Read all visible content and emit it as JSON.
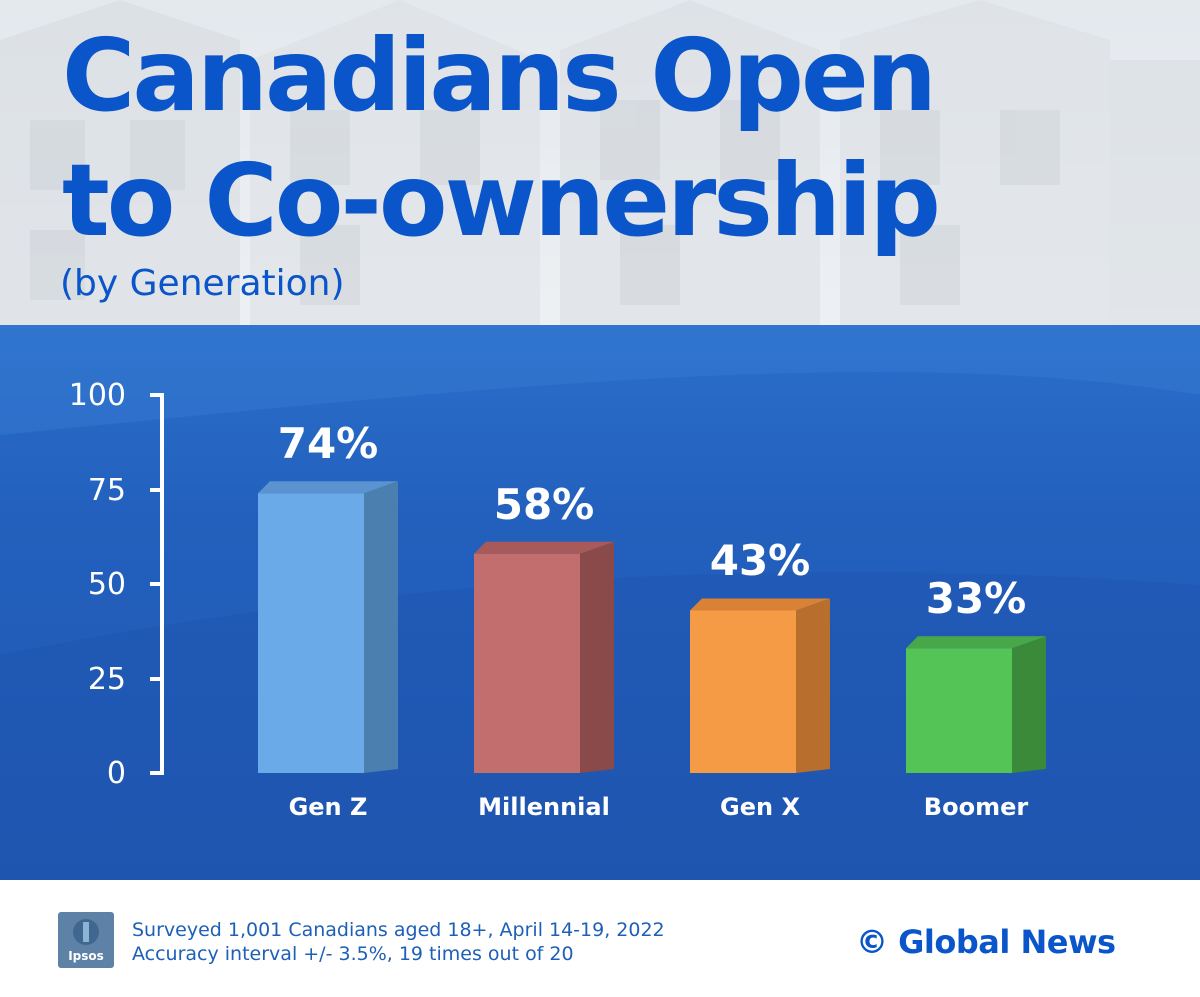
{
  "header": {
    "title_line1": "Canadians Open",
    "title_line2": "to Co-ownership",
    "subtitle": "(by Generation)"
  },
  "colors": {
    "title": "#0a55c9",
    "panel": "#2360bd",
    "gen_z": "#6aaae8",
    "millennial": "#c26e6e",
    "gen_x": "#f59a45",
    "boomer": "#55c456"
  },
  "chart_data": {
    "type": "bar",
    "title": "Canadians Open to Co-ownership",
    "subtitle": "(by Generation)",
    "categories": [
      "Gen Z",
      "Millennial",
      "Gen X",
      "Boomer"
    ],
    "values": [
      74,
      58,
      43,
      33
    ],
    "value_labels": [
      "74%",
      "58%",
      "43%",
      "33%"
    ],
    "yticks": [
      100,
      75,
      50,
      25,
      0
    ],
    "ylim": [
      0,
      100
    ],
    "xlabel": "",
    "ylabel": "",
    "grid": false,
    "legend": "none"
  },
  "footer": {
    "logo_text": "Ipsos",
    "note_line1": "Surveyed 1,001 Canadians aged 18+, April 14-19, 2022",
    "note_line2": "Accuracy interval +/- 3.5%, 19 times out of 20",
    "copyright": "© Global News"
  }
}
